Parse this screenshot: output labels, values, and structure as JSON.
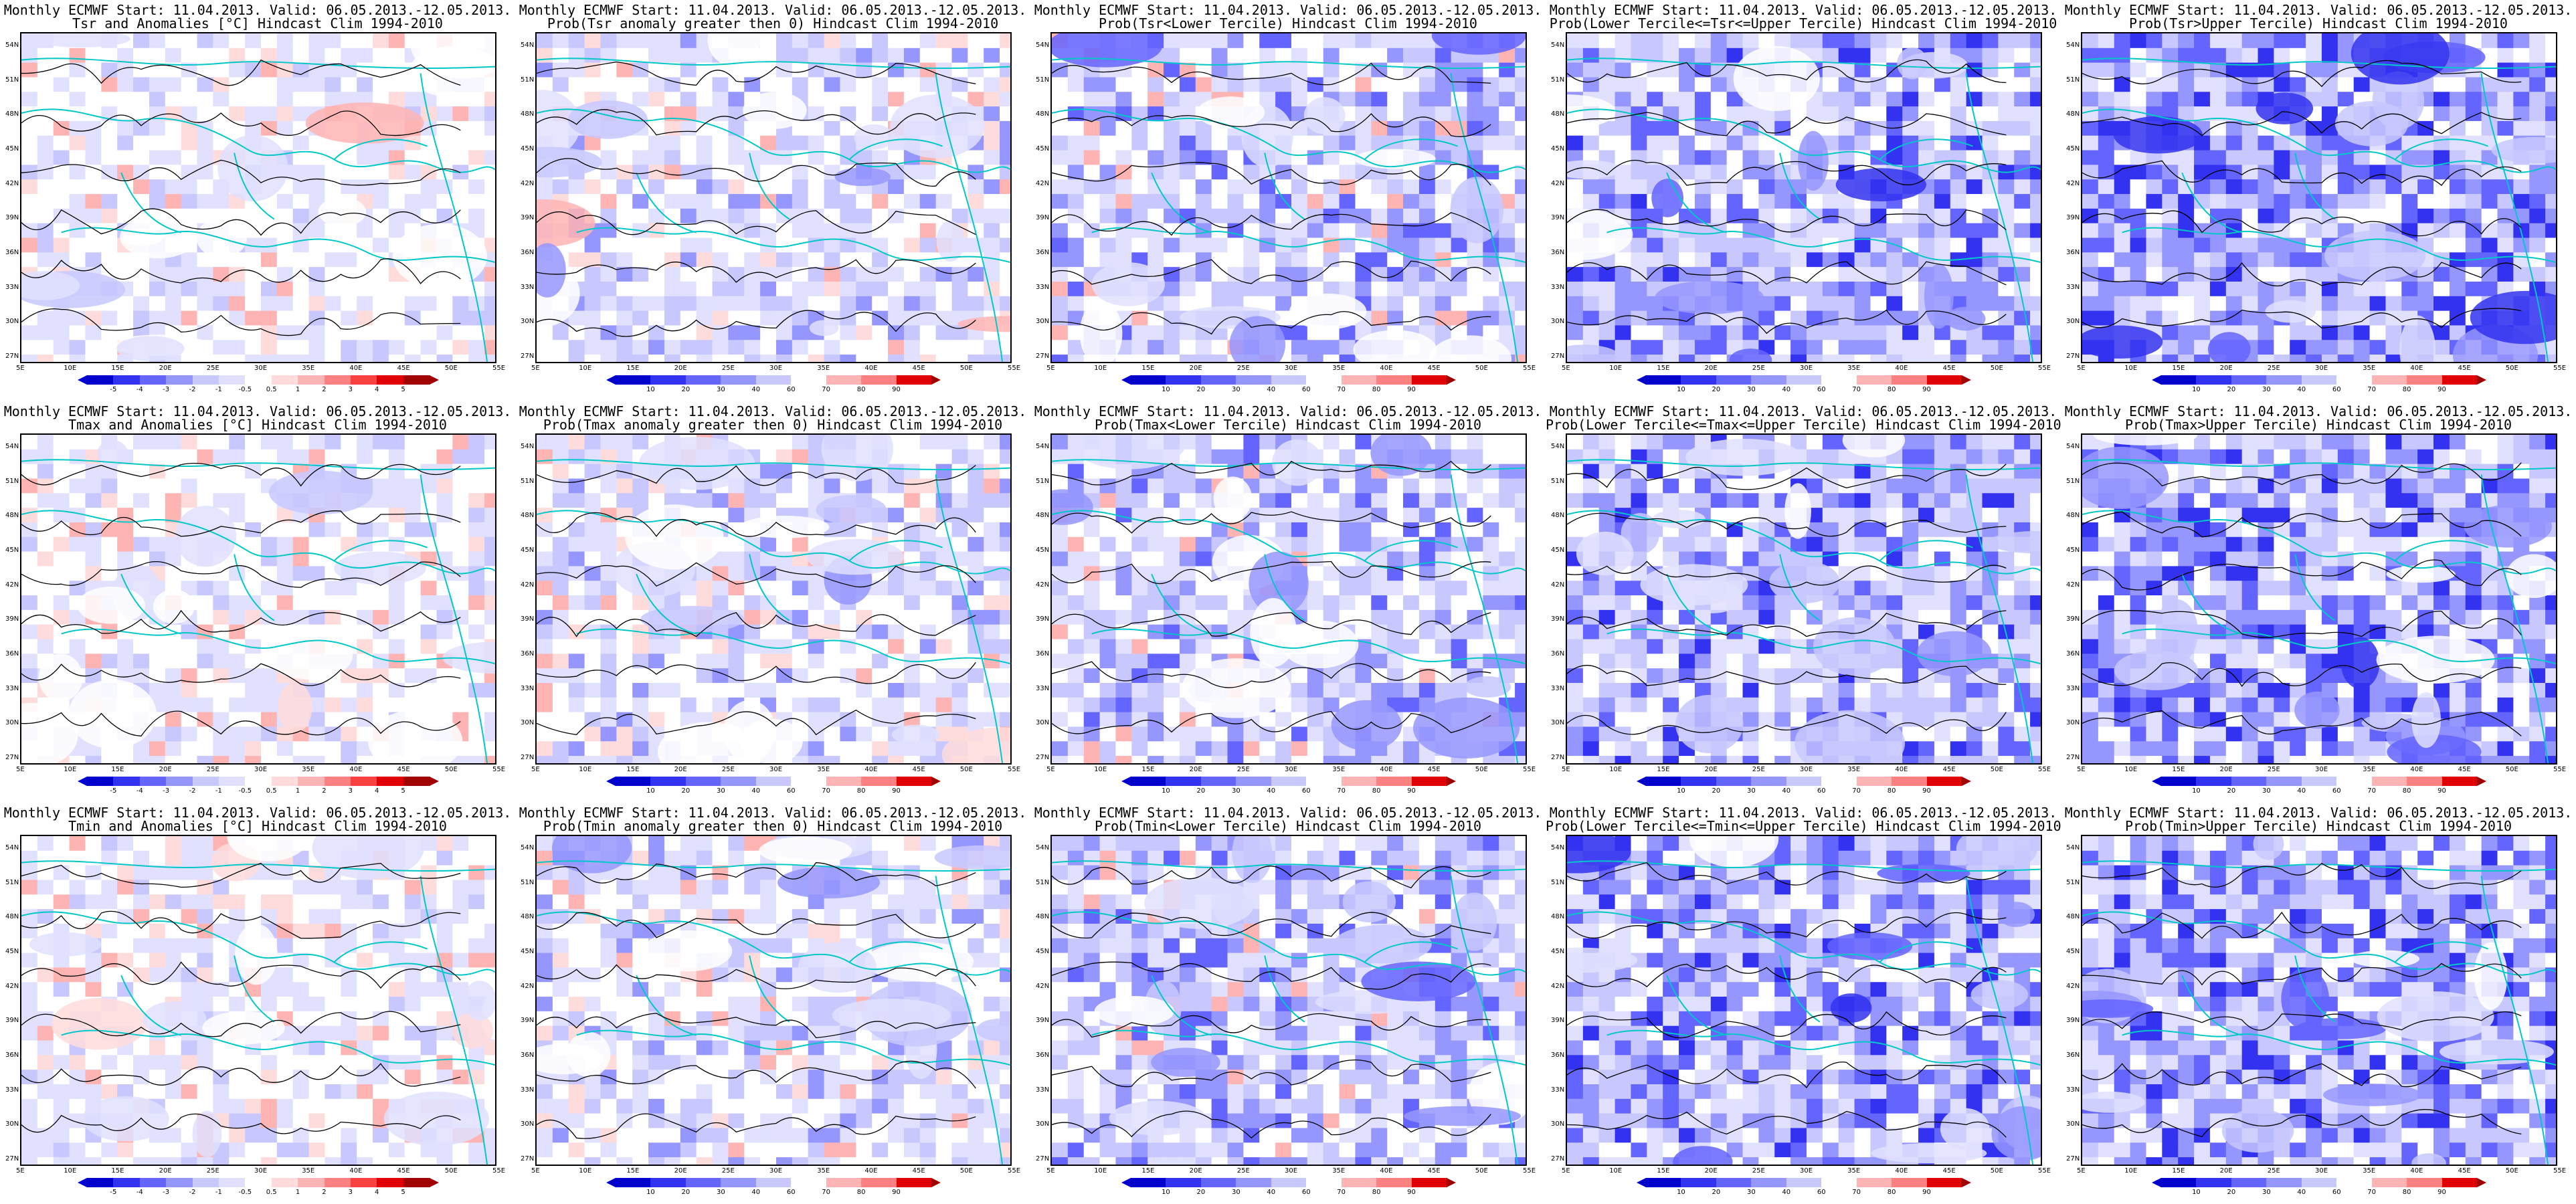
{
  "colors": {
    "land_white": "#ffffff",
    "blue_scale": [
      "#0000cd",
      "#3232f0",
      "#6464ff",
      "#9696ff",
      "#c8c8ff",
      "#e1e1ff"
    ],
    "red_scale": [
      "#ffdcdc",
      "#ffb4b4",
      "#ff8080",
      "#ff4040",
      "#e00000",
      "#a00000"
    ],
    "coast": "#00c8c8",
    "contour": "#000000"
  },
  "lat_ticks": [
    "54N",
    "51N",
    "48N",
    "45N",
    "42N",
    "39N",
    "36N",
    "33N",
    "30N",
    "27N"
  ],
  "lon_ticks": [
    "5E",
    "10E",
    "15E",
    "20E",
    "25E",
    "30E",
    "35E",
    "40E",
    "45E",
    "50E",
    "55E"
  ],
  "colorbar_anom_labels": [
    "-5",
    "-4",
    "-3",
    "-2",
    "-1",
    "-0.5",
    "0.5",
    "1",
    "2",
    "3",
    "4",
    "5"
  ],
  "colorbar_prob_labels": [
    "10",
    "20",
    "30",
    "40",
    "60",
    "70",
    "80",
    "90"
  ],
  "rows": [
    {
      "panels": [
        {
          "title1": "Monthly ECMWF Start: 11.04.2013. Valid: 06.05.2013.-12.05.2013.",
          "title2": "Tsr and Anomalies [°C] Hindcast Clim 1994-2010",
          "kind": "anom"
        },
        {
          "title1": "Monthly ECMWF Start: 11.04.2013. Valid: 06.05.2013.-12.05.2013.",
          "title2": "Prob(Tsr anomaly greater then 0) Hindcast Clim 1994-2010",
          "kind": "probA"
        },
        {
          "title1": "Monthly ECMWF Start: 11.04.2013. Valid: 06.05.2013.-12.05.2013.",
          "title2": "Prob(Tsr<Lower Tercile) Hindcast Clim 1994-2010",
          "kind": "probL"
        },
        {
          "title1": "Monthly ECMWF Start: 11.04.2013. Valid: 06.05.2013.-12.05.2013.",
          "title2": "Prob(Lower Tercile<=Tsr<=Upper Tercile) Hindcast Clim 1994-2010",
          "kind": "probM"
        },
        {
          "title1": "Monthly ECMWF Start: 11.04.2013. Valid: 06.05.2013.-12.05.2013.",
          "title2": "Prob(Tsr>Upper Tercile) Hindcast Clim 1994-2010",
          "kind": "probU"
        }
      ]
    },
    {
      "panels": [
        {
          "title1": "Monthly ECMWF Start: 11.04.2013. Valid: 06.05.2013.-12.05.2013.",
          "title2": "Tmax and Anomalies [°C] Hindcast Clim 1994-2010",
          "kind": "anom"
        },
        {
          "title1": "Monthly ECMWF Start: 11.04.2013. Valid: 06.05.2013.-12.05.2013.",
          "title2": "Prob(Tmax anomaly greater then 0) Hindcast Clim 1994-2010",
          "kind": "probA"
        },
        {
          "title1": "Monthly ECMWF Start: 11.04.2013. Valid: 06.05.2013.-12.05.2013.",
          "title2": "Prob(Tmax<Lower Tercile) Hindcast Clim 1994-2010",
          "kind": "probL"
        },
        {
          "title1": "Monthly ECMWF Start: 11.04.2013. Valid: 06.05.2013.-12.05.2013.",
          "title2": "Prob(Lower Tercile<=Tmax<=Upper Tercile) Hindcast Clim 1994-2010",
          "kind": "probM"
        },
        {
          "title1": "Monthly ECMWF Start: 11.04.2013. Valid: 06.05.2013.-12.05.2013.",
          "title2": "Prob(Tmax>Upper Tercile) Hindcast Clim 1994-2010",
          "kind": "probU"
        }
      ]
    },
    {
      "panels": [
        {
          "title1": "Monthly ECMWF Start: 11.04.2013. Valid: 06.05.2013.-12.05.2013.",
          "title2": "Tmin and Anomalies [°C] Hindcast Clim 1994-2010",
          "kind": "anom"
        },
        {
          "title1": "Monthly ECMWF Start: 11.04.2013. Valid: 06.05.2013.-12.05.2013.",
          "title2": "Prob(Tmin anomaly greater then 0) Hindcast Clim 1994-2010",
          "kind": "probA"
        },
        {
          "title1": "Monthly ECMWF Start: 11.04.2013. Valid: 06.05.2013.-12.05.2013.",
          "title2": "Prob(Tmin<Lower Tercile) Hindcast Clim 1994-2010",
          "kind": "probL"
        },
        {
          "title1": "Monthly ECMWF Start: 11.04.2013. Valid: 06.05.2013.-12.05.2013.",
          "title2": "Prob(Lower Tercile<=Tmin<=Upper Tercile) Hindcast Clim 1994-2010",
          "kind": "probM"
        },
        {
          "title1": "Monthly ECMWF Start: 11.04.2013. Valid: 06.05.2013.-12.05.2013.",
          "title2": "Prob(Tmin>Upper Tercile) Hindcast Clim 1994-2010",
          "kind": "probU"
        }
      ]
    }
  ]
}
